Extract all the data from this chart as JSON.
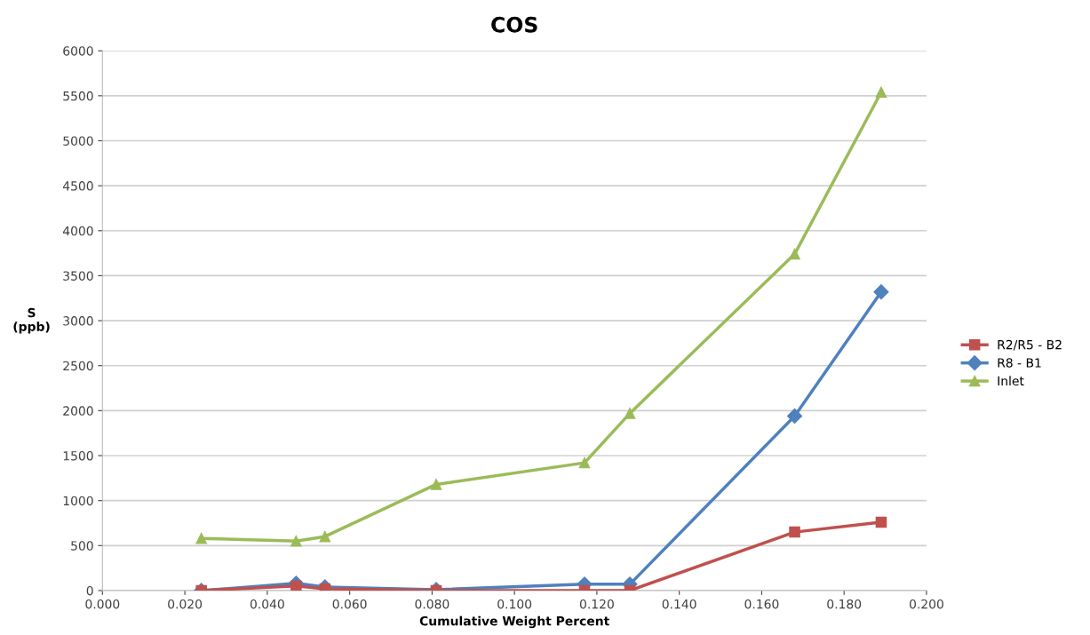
{
  "chart_data": {
    "type": "line",
    "title": "COS",
    "xlabel": "Cumulative Weight Percent",
    "ylabel": "S\n(ppb)",
    "x": [
      0.024,
      0.047,
      0.054,
      0.081,
      0.117,
      0.128,
      0.168,
      0.189
    ],
    "series": [
      {
        "name": "R2/R5 - B2",
        "color": "#c0504d",
        "marker": "square",
        "values": [
          0,
          50,
          20,
          0,
          0,
          0,
          650,
          760
        ]
      },
      {
        "name": "R8 - B1",
        "color": "#4f81bd",
        "marker": "diamond",
        "values": [
          0,
          80,
          40,
          10,
          70,
          70,
          1940,
          3320
        ]
      },
      {
        "name": "Inlet",
        "color": "#9bbb59",
        "marker": "triangle",
        "values": [
          580,
          550,
          600,
          1180,
          1420,
          1970,
          3740,
          5540
        ]
      }
    ],
    "xlim": [
      0,
      0.2
    ],
    "xticks": [
      {
        "value": 0,
        "label": "0.000"
      },
      {
        "value": 0.02,
        "label": "0.020"
      },
      {
        "value": 0.04,
        "label": "0.040"
      },
      {
        "value": 0.06,
        "label": "0.060"
      },
      {
        "value": 0.08,
        "label": "0.080"
      },
      {
        "value": 0.1,
        "label": "0.100"
      },
      {
        "value": 0.12,
        "label": "0.120"
      },
      {
        "value": 0.14,
        "label": "0.140"
      },
      {
        "value": 0.16,
        "label": "0.160"
      },
      {
        "value": 0.18,
        "label": "0.180"
      },
      {
        "value": 0.2,
        "label": "0.200"
      }
    ],
    "ylim": [
      0,
      6000
    ],
    "yticks": [
      0,
      500,
      1000,
      1500,
      2000,
      2500,
      3000,
      3500,
      4000,
      4500,
      5000,
      5500,
      6000
    ],
    "grid": "y",
    "legend": "right",
    "line_style": "solid"
  }
}
